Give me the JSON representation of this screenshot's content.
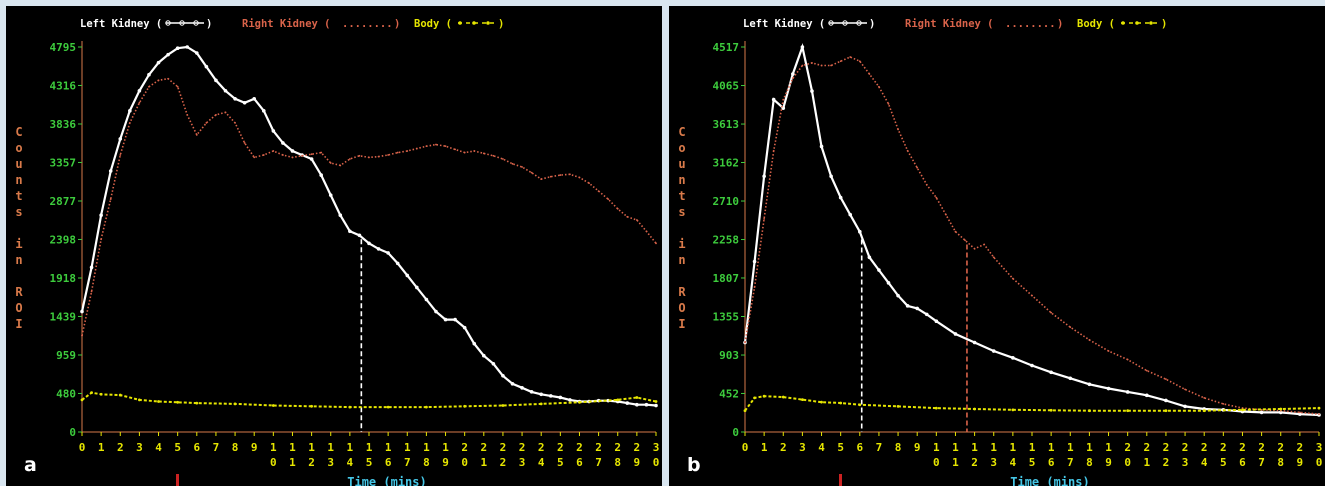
{
  "colors": {
    "background": "#000000",
    "left_kidney": "#ffffff",
    "right_kidney": "#d9634a",
    "body": "#e6e600",
    "y_ticks": "#3dcc3d",
    "x_ticks": "#e6e600",
    "axis_labels": "#d97a4a",
    "time_label": "#45c6e6",
    "marker": "#cc2222"
  },
  "legend": {
    "left_kidney": "Left Kidney (",
    "left_kidney_end": ")",
    "right_kidney": "Right Kidney (",
    "right_kidney_dots": "........",
    "right_kidney_end": ")",
    "body": "Body (",
    "body_end": ")"
  },
  "y_axis_label_chars": [
    "C",
    "o",
    "u",
    "n",
    "t",
    "s",
    "",
    "i",
    "n",
    "",
    "R",
    "O",
    "I"
  ],
  "x_axis_label": "Time (mins)",
  "x_tick_labels": [
    [
      "0",
      ""
    ],
    [
      "1",
      ""
    ],
    [
      "2",
      ""
    ],
    [
      "3",
      ""
    ],
    [
      "4",
      ""
    ],
    [
      "5",
      ""
    ],
    [
      "6",
      ""
    ],
    [
      "7",
      ""
    ],
    [
      "8",
      ""
    ],
    [
      "9",
      ""
    ],
    [
      "1",
      "0"
    ],
    [
      "1",
      "1"
    ],
    [
      "1",
      "2"
    ],
    [
      "1",
      "3"
    ],
    [
      "1",
      "4"
    ],
    [
      "1",
      "5"
    ],
    [
      "1",
      "6"
    ],
    [
      "1",
      "7"
    ],
    [
      "1",
      "8"
    ],
    [
      "1",
      "9"
    ],
    [
      "2",
      "0"
    ],
    [
      "2",
      "1"
    ],
    [
      "2",
      "2"
    ],
    [
      "2",
      "3"
    ],
    [
      "2",
      "4"
    ],
    [
      "2",
      "5"
    ],
    [
      "2",
      "6"
    ],
    [
      "2",
      "7"
    ],
    [
      "2",
      "8"
    ],
    [
      "2",
      "9"
    ],
    [
      "3",
      "0"
    ]
  ],
  "chart_data": [
    {
      "panel_label": "a",
      "type": "line",
      "xlabel": "Time (mins)",
      "ylabel": "Counts in ROI",
      "xlim": [
        0,
        30
      ],
      "ylim": [
        0,
        4795
      ],
      "y_ticks": [
        0,
        480,
        959,
        1439,
        1918,
        2398,
        2877,
        3357,
        3836,
        4316,
        4795
      ],
      "legend_position": "top",
      "series": [
        {
          "name": "Left Kidney",
          "style": "white solid with circle markers",
          "x": [
            0,
            0.5,
            1,
            1.5,
            2,
            2.5,
            3,
            3.5,
            4,
            4.5,
            5,
            5.5,
            6,
            6.5,
            7,
            7.5,
            8,
            8.5,
            9,
            9.5,
            10,
            10.5,
            11,
            11.5,
            12,
            12.5,
            13,
            13.5,
            14,
            14.5,
            15,
            15.5,
            16,
            16.5,
            17,
            17.5,
            18,
            18.5,
            19,
            19.5,
            20,
            20.5,
            21,
            21.5,
            22,
            22.5,
            23,
            23.5,
            24,
            24.5,
            25,
            25.5,
            26,
            26.5,
            27,
            27.5,
            28,
            28.5,
            29,
            29.5,
            30
          ],
          "values": [
            1500,
            2050,
            2700,
            3250,
            3650,
            4000,
            4250,
            4450,
            4600,
            4700,
            4780,
            4795,
            4720,
            4550,
            4380,
            4250,
            4150,
            4100,
            4150,
            4000,
            3750,
            3600,
            3500,
            3450,
            3400,
            3200,
            2950,
            2700,
            2500,
            2450,
            2350,
            2280,
            2230,
            2100,
            1950,
            1800,
            1650,
            1500,
            1400,
            1400,
            1300,
            1100,
            950,
            850,
            700,
            600,
            550,
            500,
            470,
            450,
            430,
            400,
            380,
            380,
            390,
            390,
            380,
            360,
            340,
            340,
            330
          ]
        },
        {
          "name": "Right Kidney",
          "style": "orange-red dotted",
          "x": [
            0,
            0.5,
            1,
            1.5,
            2,
            2.5,
            3,
            3.5,
            4,
            4.5,
            5,
            5.5,
            6,
            6.5,
            7,
            7.5,
            8,
            8.5,
            9,
            9.5,
            10,
            10.5,
            11,
            11.5,
            12,
            12.5,
            13,
            13.5,
            14,
            14.5,
            15,
            15.5,
            16,
            16.5,
            17,
            17.5,
            18,
            18.5,
            19,
            19.5,
            20,
            20.5,
            21,
            21.5,
            22,
            22.5,
            23,
            23.5,
            24,
            24.5,
            25,
            25.5,
            26,
            26.5,
            27,
            27.5,
            28,
            28.5,
            29,
            29.5,
            30
          ],
          "values": [
            1200,
            1750,
            2400,
            2900,
            3450,
            3850,
            4100,
            4300,
            4380,
            4400,
            4300,
            3950,
            3700,
            3850,
            3950,
            3980,
            3850,
            3600,
            3420,
            3450,
            3500,
            3450,
            3420,
            3440,
            3460,
            3480,
            3350,
            3320,
            3400,
            3440,
            3420,
            3430,
            3450,
            3480,
            3500,
            3530,
            3560,
            3580,
            3560,
            3520,
            3480,
            3500,
            3470,
            3440,
            3400,
            3340,
            3300,
            3230,
            3150,
            3180,
            3200,
            3210,
            3170,
            3100,
            3000,
            2900,
            2780,
            2680,
            2640,
            2500,
            2350
          ]
        },
        {
          "name": "Body",
          "style": "yellow dashed with markers",
          "x": [
            0,
            0.5,
            1,
            2,
            3,
            4,
            5,
            6,
            8,
            10,
            12,
            14,
            16,
            18,
            20,
            22,
            24,
            26,
            28,
            29,
            30
          ],
          "values": [
            400,
            490,
            470,
            460,
            400,
            380,
            370,
            360,
            350,
            330,
            320,
            310,
            310,
            310,
            320,
            330,
            350,
            370,
            400,
            430,
            380
          ]
        }
      ],
      "annotations": [
        {
          "type": "vertical dashed line",
          "color": "white",
          "x": 14.6,
          "y_range": [
            0,
            2400
          ]
        }
      ]
    },
    {
      "panel_label": "b",
      "type": "line",
      "xlabel": "Time (mins)",
      "ylabel": "Counts in ROI",
      "xlim": [
        0,
        30
      ],
      "ylim": [
        0,
        4517
      ],
      "y_ticks": [
        0,
        452,
        903,
        1355,
        1807,
        2258,
        2710,
        3162,
        3613,
        4065,
        4517
      ],
      "legend_position": "top",
      "series": [
        {
          "name": "Left Kidney",
          "style": "white solid with circle markers",
          "x": [
            0,
            0.5,
            1,
            1.5,
            2,
            2.5,
            3,
            3.5,
            4,
            4.5,
            5,
            5.5,
            6,
            6.5,
            7,
            7.5,
            8,
            8.5,
            9,
            9.5,
            10,
            11,
            12,
            13,
            14,
            15,
            16,
            17,
            18,
            19,
            20,
            21,
            22,
            23,
            24,
            25,
            26,
            27,
            28,
            29,
            30
          ],
          "values": [
            1050,
            2000,
            3000,
            3900,
            3800,
            4200,
            4517,
            4000,
            3350,
            3000,
            2750,
            2550,
            2350,
            2050,
            1900,
            1750,
            1600,
            1480,
            1450,
            1380,
            1300,
            1150,
            1050,
            950,
            870,
            780,
            700,
            630,
            560,
            510,
            470,
            430,
            370,
            300,
            270,
            260,
            240,
            230,
            230,
            210,
            200
          ]
        },
        {
          "name": "Right Kidney",
          "style": "orange-red dotted",
          "x": [
            0,
            0.5,
            1,
            1.5,
            2,
            2.5,
            3,
            3.5,
            4,
            4.5,
            5,
            5.5,
            6,
            6.5,
            7,
            7.5,
            8,
            8.5,
            9,
            9.5,
            10,
            10.5,
            11,
            11.5,
            12,
            12.5,
            13,
            14,
            15,
            16,
            17,
            18,
            19,
            20,
            21,
            22,
            23,
            24,
            25,
            26,
            27,
            28,
            29,
            30
          ],
          "values": [
            1050,
            1700,
            2500,
            3300,
            3900,
            4150,
            4300,
            4330,
            4300,
            4300,
            4350,
            4400,
            4350,
            4200,
            4050,
            3850,
            3550,
            3300,
            3100,
            2900,
            2750,
            2550,
            2350,
            2250,
            2150,
            2200,
            2050,
            1800,
            1600,
            1400,
            1230,
            1080,
            950,
            850,
            720,
            620,
            500,
            400,
            330,
            280,
            260,
            250,
            230,
            210
          ]
        },
        {
          "name": "Body",
          "style": "yellow dashed with markers",
          "x": [
            0,
            0.5,
            1,
            2,
            3,
            4,
            5,
            6,
            8,
            10,
            12,
            14,
            16,
            18,
            20,
            22,
            24,
            26,
            28,
            30
          ],
          "values": [
            250,
            400,
            420,
            410,
            380,
            350,
            340,
            320,
            300,
            280,
            270,
            260,
            255,
            250,
            250,
            250,
            250,
            260,
            270,
            280
          ]
        }
      ],
      "annotations": [
        {
          "type": "vertical dashed line",
          "color": "white",
          "x": 6.1,
          "y_range": [
            0,
            2258
          ]
        },
        {
          "type": "vertical dashed line",
          "color": "orange-red",
          "x": 11.6,
          "y_range": [
            0,
            2200
          ]
        }
      ]
    }
  ]
}
